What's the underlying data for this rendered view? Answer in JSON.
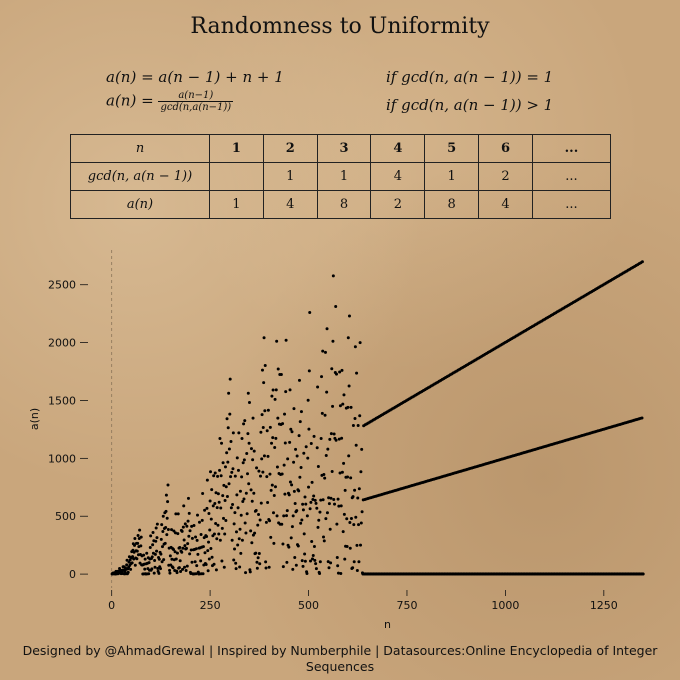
{
  "title": "Randomness to Uniformity",
  "formulas": {
    "line1_left": "a(n) = a(n − 1) + n + 1",
    "line1_right": "if gcd(n, a(n − 1)) = 1",
    "line2_left": "a(n) =",
    "line2_num": "a(n−1)",
    "line2_den": "gcd(n,a(n−1))",
    "line2_right": "if gcd(n, a(n − 1)) > 1"
  },
  "table": {
    "headers": [
      "n",
      "1",
      "2",
      "3",
      "4",
      "5",
      "6",
      "..."
    ],
    "rows": [
      [
        "gcd(n, a(n − 1))",
        "",
        "1",
        "1",
        "4",
        "1",
        "2",
        "..."
      ],
      [
        "a(n)",
        "1",
        "4",
        "8",
        "2",
        "8",
        "4",
        "..."
      ]
    ]
  },
  "chart_data": {
    "type": "scatter",
    "xlabel": "n",
    "ylabel": "a(n)",
    "xlim": [
      -50,
      1380
    ],
    "ylim": [
      -120,
      2800
    ],
    "xticks": [
      0,
      250,
      500,
      750,
      1000,
      1250
    ],
    "yticks": [
      0,
      500,
      1000,
      1500,
      2000,
      2500
    ],
    "sequence": "a(1)=1; a(n)=a(n-1)+n+1 if gcd(n,a(n-1))=1, else a(n-1)/gcd(n,a(n-1))",
    "n_max": 1350
  },
  "footer": "Designed by @AhmadGrewal  | Inspired by Numberphile | Datasources:Online Encyclopedia of Integer Sequences",
  "colors": {
    "background": "#c9a67c",
    "ink": "#111111",
    "point": "#000000"
  }
}
